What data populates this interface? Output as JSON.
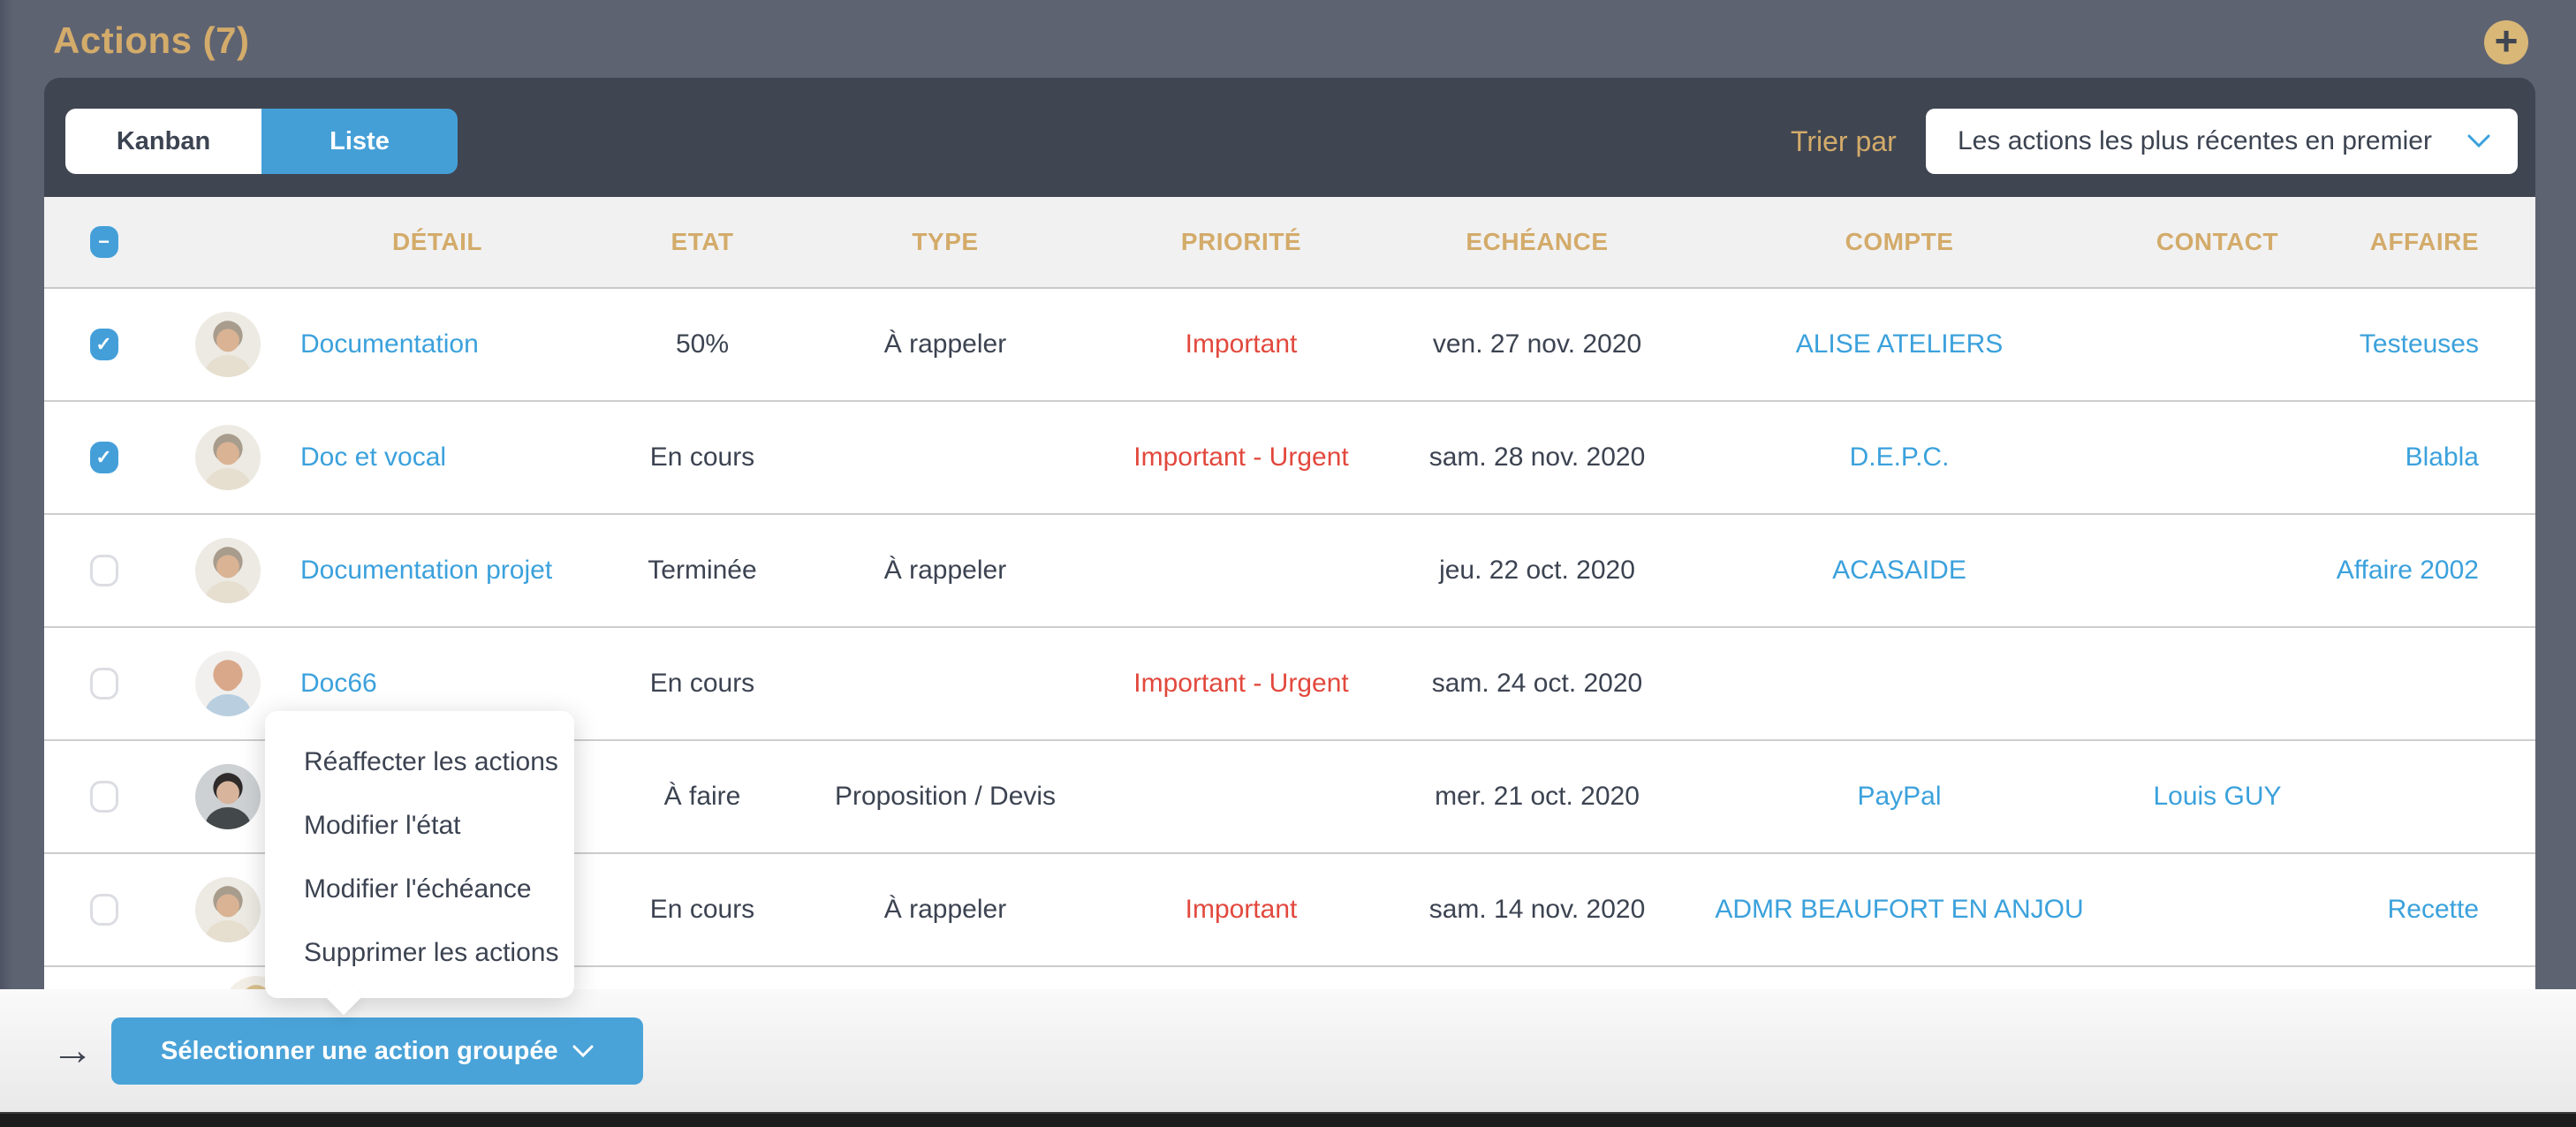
{
  "page": {
    "title": "Actions (7)"
  },
  "icons": {
    "add": "+",
    "checkmark": "✓",
    "indeterminate": "−",
    "back_arrow": "→"
  },
  "toolbar": {
    "view_toggle": [
      {
        "label": "Kanban",
        "active": false
      },
      {
        "label": "Liste",
        "active": true
      }
    ],
    "sort_label": "Trier par",
    "sort_value": "Les actions les plus récentes en premier"
  },
  "table": {
    "select_all_state": "indeterminate",
    "columns": [
      "DÉTAIL",
      "ETAT",
      "TYPE",
      "PRIORITÉ",
      "ECHÉANCE",
      "COMPTE",
      "CONTACT",
      "AFFAIRE"
    ],
    "rows": [
      {
        "checked": true,
        "detail": "Documentation",
        "etat": "50%",
        "type": "À rappeler",
        "priorite": "Important",
        "echeance": "ven. 27 nov. 2020",
        "compte": "ALISE ATELIERS",
        "contact": "",
        "affaire": "Testeuses",
        "avatar": {
          "bg": "#edeae3",
          "hair": "#a89c8d",
          "skin": "#d9b394",
          "shirt": "#e6dfd0"
        }
      },
      {
        "checked": true,
        "detail": "Doc et vocal",
        "etat": "En cours",
        "type": "",
        "priorite": "Important - Urgent",
        "echeance": "sam. 28 nov. 2020",
        "compte": "D.E.P.C.",
        "contact": "",
        "affaire": "Blabla",
        "avatar": {
          "bg": "#edeae3",
          "hair": "#a89c8d",
          "skin": "#d9b394",
          "shirt": "#e6dfd0"
        }
      },
      {
        "checked": false,
        "detail": "Documentation projet",
        "etat": "Terminée",
        "type": "À rappeler",
        "priorite": "",
        "echeance": "jeu. 22 oct. 2020",
        "compte": "ACASAIDE",
        "contact": "",
        "affaire": "Affaire 2002",
        "avatar": {
          "bg": "#edeae3",
          "hair": "#a89c8d",
          "skin": "#d9b394",
          "shirt": "#e6dfd0"
        }
      },
      {
        "checked": false,
        "detail": "Doc66",
        "etat": "En cours",
        "type": "",
        "priorite": "Important - Urgent",
        "echeance": "sam. 24 oct. 2020",
        "compte": "",
        "contact": "",
        "affaire": "",
        "avatar": {
          "bg": "#f1f0ee",
          "hair": "#d9a88a",
          "skin": "#d9a88a",
          "shirt": "#b9cfe0"
        }
      },
      {
        "checked": false,
        "detail": "",
        "etat": "À faire",
        "type": "Proposition / Devis",
        "priorite": "",
        "echeance": "mer. 21 oct. 2020",
        "compte": "PayPal",
        "contact": "Louis GUY",
        "affaire": "",
        "avatar": {
          "bg": "#cdd1d4",
          "hair": "#2f2b2a",
          "skin": "#d8b49c",
          "shirt": "#43484a"
        }
      },
      {
        "checked": false,
        "detail": "",
        "etat": "En cours",
        "type": "À rappeler",
        "priorite": "Important",
        "echeance": "sam. 14 nov. 2020",
        "compte": "ADMR BEAUFORT EN ANJOU",
        "contact": "",
        "affaire": "Recette",
        "avatar": {
          "bg": "#edeae3",
          "hair": "#a89c8d",
          "skin": "#d9b394",
          "shirt": "#e6dfd0"
        }
      }
    ],
    "partial_row": {
      "avatar": {
        "bg": "#f3efe7",
        "hair": "#d9c08b",
        "skin": "#d9c08b",
        "shirt": "#ffffff"
      }
    }
  },
  "context_menu": {
    "items": [
      "Réaffecter les actions",
      "Modifier l'état",
      "Modifier l'échéance",
      "Supprimer les actions"
    ]
  },
  "bottom_bar": {
    "button_label": "Sélectionner une action groupée"
  },
  "colors": {
    "page_bg": "#5e6372",
    "panel_dark": "#3f4551",
    "accent_gold": "#d3ab6a",
    "accent_blue": "#459fd7",
    "link_blue": "#3ba1dc",
    "danger_red": "#e2483d",
    "row_border": "#cdcdcf"
  }
}
